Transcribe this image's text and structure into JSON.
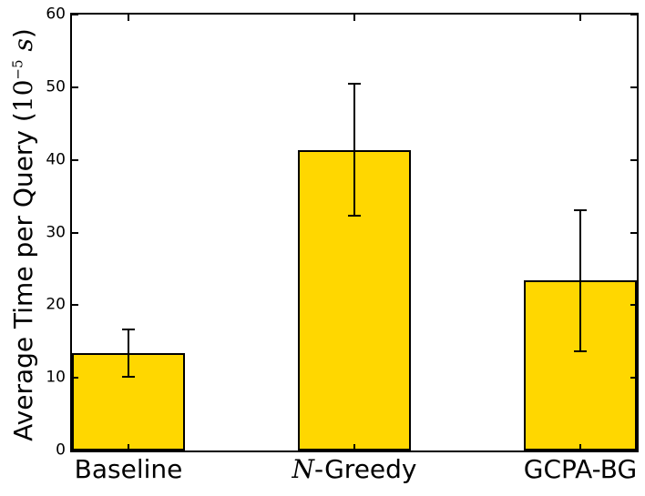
{
  "chart_data": {
    "type": "bar",
    "categories": [
      "Baseline",
      "N-Greedy",
      "GCPA-BG"
    ],
    "categories_rich": [
      {
        "italic": "",
        "text": "Baseline"
      },
      {
        "italic": "N",
        "text": "-Greedy"
      },
      {
        "italic": "",
        "text": "GCPA-BG"
      }
    ],
    "values": [
      13.4,
      41.4,
      23.4
    ],
    "errors": [
      3.2,
      9.1,
      9.7
    ],
    "ylabel": {
      "pre": "Average Time per Query (",
      "base": "10",
      "exp": "−5",
      "unit": "s",
      "close": ")"
    },
    "ylim": [
      0,
      60
    ],
    "yticks": [
      0,
      10,
      20,
      30,
      40,
      50,
      60
    ],
    "grid": false,
    "legend": "none",
    "colors": {
      "bar_fill": "#FFD700",
      "bar_edge": "#000000",
      "error": "#000000",
      "axis": "#000000",
      "background": "#FFFFFF",
      "text": "#000000"
    }
  }
}
